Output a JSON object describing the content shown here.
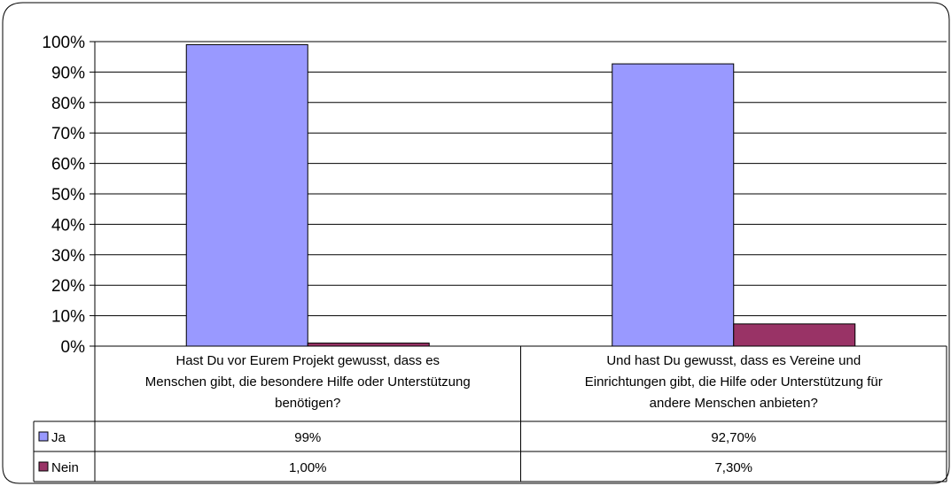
{
  "chart_data": {
    "type": "bar",
    "categories": [
      [
        "Hast Du vor Eurem Projekt gewusst, dass es",
        "Menschen gibt, die besondere Hilfe oder Unterstützung",
        "benötigen?"
      ],
      [
        "Und hast Du gewusst, dass es Vereine und",
        "Einrichtungen gibt, die Hilfe oder Unterstützung für",
        "andere Menschen anbieten?"
      ]
    ],
    "series": [
      {
        "name": "Ja",
        "color": "#9999ff",
        "values": [
          99,
          92.7
        ],
        "table_labels": [
          "99%",
          "92,70%"
        ]
      },
      {
        "name": "Nein",
        "color": "#993366",
        "values": [
          1.0,
          7.3
        ],
        "table_labels": [
          "1,00%",
          "7,30%"
        ]
      }
    ],
    "ylim": [
      0,
      100
    ],
    "yticks": [
      "0%",
      "10%",
      "20%",
      "30%",
      "40%",
      "50%",
      "60%",
      "70%",
      "80%",
      "90%",
      "100%"
    ],
    "grid": true,
    "legend": "data-table"
  }
}
